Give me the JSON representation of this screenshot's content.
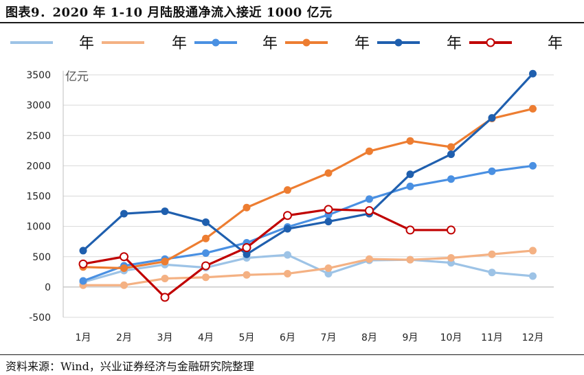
{
  "title": "图表9．2020 年 1-10 月陆股通净流入接近 1000 亿元",
  "source": "资料来源：Wind，兴业证券经济与金融研究院整理",
  "chart_data": {
    "type": "line",
    "unit_label": "亿元",
    "categories": [
      "1月",
      "2月",
      "3月",
      "4月",
      "5月",
      "6月",
      "7月",
      "8月",
      "9月",
      "10月",
      "11月",
      "12月"
    ],
    "ylim": [
      -500,
      3500
    ],
    "yticks": [
      -500,
      0,
      500,
      1000,
      1500,
      2000,
      2500,
      3000,
      3500
    ],
    "grid": true,
    "legend_position": "top",
    "series": [
      {
        "name": "年",
        "color": "#9dc3e6",
        "marker": "filled",
        "values": [
          80,
          270,
          370,
          320,
          480,
          530,
          220,
          440,
          450,
          400,
          240,
          180
        ]
      },
      {
        "name": "年",
        "color": "#f4b183",
        "marker": "filled",
        "values": [
          30,
          30,
          140,
          160,
          200,
          220,
          310,
          460,
          450,
          480,
          540,
          600
        ]
      },
      {
        "name": "年",
        "color": "#4a90e2",
        "marker": "filled",
        "values": [
          100,
          350,
          460,
          560,
          730,
          990,
          1190,
          1450,
          1660,
          1780,
          1910,
          2000
        ]
      },
      {
        "name": "年",
        "color": "#ed7d31",
        "marker": "filled",
        "values": [
          330,
          310,
          420,
          800,
          1310,
          1600,
          1880,
          2240,
          2410,
          2310,
          2780,
          2940
        ]
      },
      {
        "name": "年",
        "color": "#1f5fae",
        "marker": "filled",
        "values": [
          600,
          1210,
          1250,
          1070,
          540,
          960,
          1080,
          1210,
          1860,
          2190,
          2790,
          3520
        ]
      },
      {
        "name": "年",
        "color": "#c00000",
        "marker": "hollow",
        "values": [
          380,
          500,
          -170,
          350,
          650,
          1180,
          1280,
          1260,
          940,
          940,
          null,
          null
        ]
      }
    ],
    "legend_trailing_text": "年"
  }
}
